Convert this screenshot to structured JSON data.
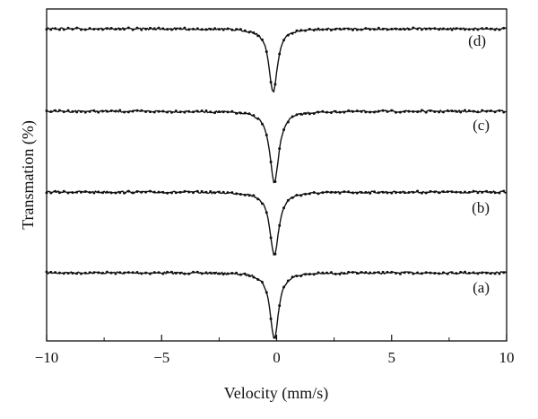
{
  "chart_data": {
    "type": "line",
    "xlabel": "Velocity (mm/s)",
    "ylabel": "Transmation (%)",
    "xlim": [
      -10,
      10
    ],
    "x_ticks": [
      -10,
      -5,
      0,
      5,
      10
    ],
    "x_tick_labels": [
      "−10",
      "−5",
      "0",
      "5",
      "10"
    ],
    "y_tick_labels_shown": false,
    "grid": false,
    "legend": "none",
    "stacking": "vertically offset spectra",
    "series": [
      {
        "label": "(a)",
        "dip_center": -0.1,
        "dip_width": 0.22,
        "dip_depth": 0.74
      },
      {
        "label": "(b)",
        "dip_center": -0.1,
        "dip_width": 0.24,
        "dip_depth": 0.7
      },
      {
        "label": "(c)",
        "dip_center": -0.1,
        "dip_width": 0.24,
        "dip_depth": 0.8
      },
      {
        "label": "(d)",
        "dip_center": -0.15,
        "dip_width": 0.22,
        "dip_depth": 0.71
      }
    ],
    "line_color": "#111111"
  }
}
